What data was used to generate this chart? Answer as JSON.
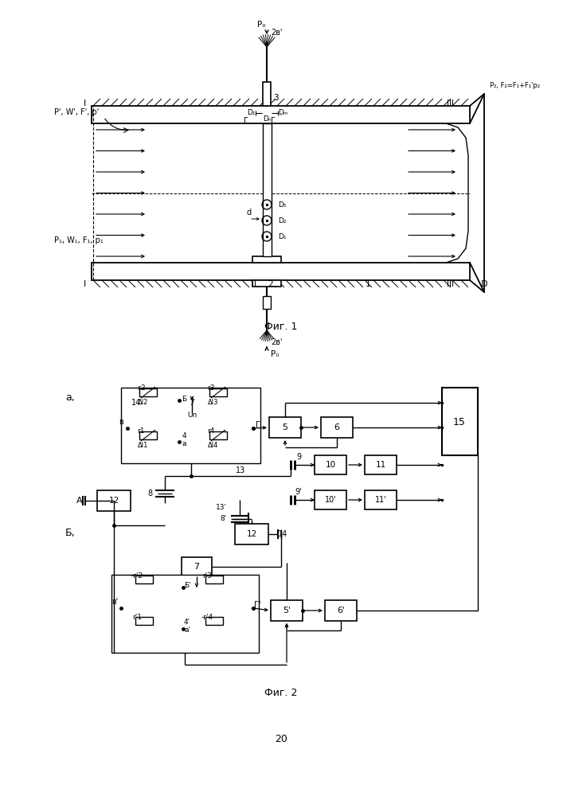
{
  "fig1_caption": "Фиг. 1",
  "fig2_caption": "Фиг. 2",
  "page_number": "20",
  "bg_color": "#ffffff",
  "line_color": "#000000"
}
